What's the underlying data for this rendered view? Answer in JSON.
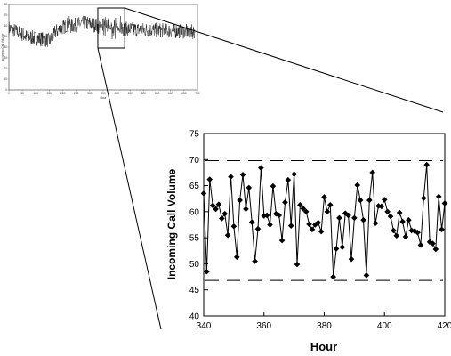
{
  "chart_data": [
    {
      "type": "line",
      "role": "overview",
      "title": "",
      "xlabel": "Hour",
      "ylabel": "Incoming Call Volume",
      "xlim": [
        0,
        700
      ],
      "ylim": [
        0,
        80
      ],
      "xticks": [
        "0",
        "50",
        "100",
        "150",
        "200",
        "250",
        "300",
        "350",
        "400",
        "450",
        "500",
        "550",
        "600",
        "650",
        "700"
      ],
      "yticks": [
        "0",
        "10",
        "20",
        "30",
        "40",
        "50",
        "60",
        "70",
        "80"
      ],
      "zoom_window": {
        "x": [
          340,
          420
        ],
        "y": [
          40,
          75
        ]
      },
      "grid": false,
      "legend": "none"
    },
    {
      "type": "line",
      "role": "detail",
      "title": "",
      "xlabel": "Hour",
      "ylabel": "Incoming Call Volume",
      "xlim": [
        340,
        420
      ],
      "ylim": [
        40,
        75
      ],
      "xticks": [
        "340",
        "360",
        "380",
        "400",
        "420"
      ],
      "yticks": [
        "40",
        "45",
        "50",
        "55",
        "60",
        "65",
        "70",
        "75"
      ],
      "grid": false,
      "legend": "none",
      "control_limits": {
        "upper": 69.8,
        "lower": 46.8
      },
      "series": [
        {
          "marker": "diamond",
          "x": [
            340,
            341,
            342,
            343,
            344,
            345,
            346,
            347,
            348,
            349,
            350,
            351,
            352,
            353,
            354,
            355,
            356,
            357,
            358,
            359,
            360,
            361,
            362,
            363,
            364,
            365,
            366,
            367,
            368,
            369,
            370,
            371,
            372,
            373,
            374,
            375,
            376,
            377,
            378,
            379,
            380,
            381,
            382,
            383,
            384,
            385,
            386,
            387,
            388,
            389,
            390,
            391,
            392,
            393,
            394,
            395,
            396,
            397,
            398,
            399,
            400,
            401,
            402,
            403,
            404,
            405,
            406,
            407,
            408,
            409,
            410,
            411,
            412,
            413,
            414,
            415,
            416,
            417,
            418,
            419,
            420
          ],
          "y": [
            63.5,
            48.5,
            66.2,
            61.2,
            60.5,
            61.4,
            58.7,
            59.6,
            55.5,
            66.7,
            57.2,
            51.3,
            62.2,
            67.1,
            60.5,
            64.6,
            58.0,
            50.5,
            56.7,
            68.4,
            59.2,
            59.3,
            57.5,
            64.9,
            59.6,
            59.3,
            54.5,
            61.8,
            66.1,
            57.3,
            67.2,
            49.9,
            61.3,
            60.6,
            60.0,
            57.6,
            56.6,
            57.5,
            57.9,
            56.2,
            62.8,
            60.0,
            61.3,
            47.5,
            52.9,
            58.8,
            53.2,
            59.7,
            59.3,
            50.9,
            58.8,
            65.1,
            62.2,
            58.4,
            47.8,
            62.2,
            67.5,
            57.8,
            61.1,
            61.0,
            62.3,
            60.0,
            59.1,
            56.4,
            55.4,
            59.8,
            58.1,
            55.2,
            58.4,
            56.4,
            56.3,
            56.0,
            53.6,
            62.6,
            69.0,
            54.2,
            53.9,
            52.8,
            62.9,
            56.6,
            61.6
          ]
        }
      ]
    }
  ]
}
